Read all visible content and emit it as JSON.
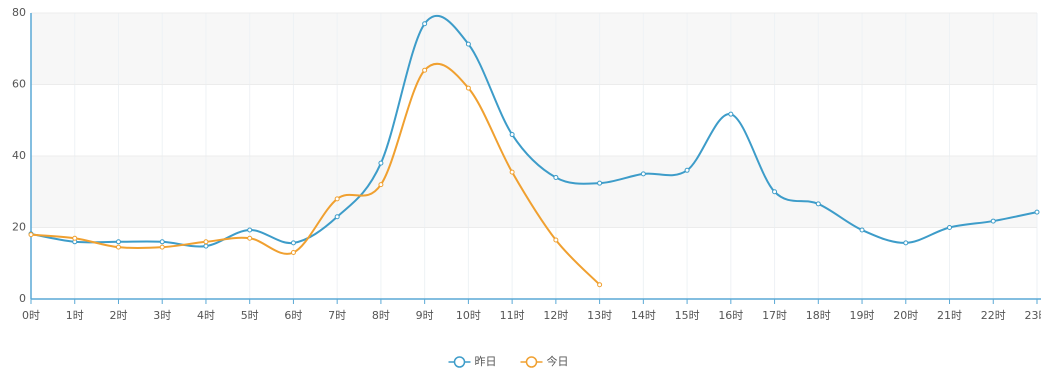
{
  "chart_data": {
    "type": "line",
    "categories": [
      "0时",
      "1时",
      "2时",
      "3时",
      "4时",
      "5时",
      "6时",
      "7时",
      "8时",
      "9时",
      "10时",
      "11时",
      "12时",
      "13时",
      "14时",
      "15时",
      "16时",
      "17时",
      "18时",
      "19时",
      "20时",
      "21时",
      "22时",
      "23时"
    ],
    "series": [
      {
        "name": "昨日",
        "color": "#3d9cc9",
        "values": [
          18.2,
          16,
          16,
          16,
          14.8,
          19.3,
          15.7,
          23,
          38,
          77,
          71.3,
          46,
          34,
          32.4,
          35,
          36,
          51.7,
          30,
          26.6,
          19.3,
          15.7,
          20,
          21.8,
          24.3
        ]
      },
      {
        "name": "今日",
        "color": "#f0a030",
        "values": [
          18,
          17,
          14.5,
          14.5,
          16,
          17,
          13,
          28,
          32,
          64,
          59,
          35.5,
          16.5,
          4,
          null,
          null,
          null,
          null,
          null,
          null,
          null,
          null,
          null,
          null
        ]
      }
    ],
    "ylim": [
      0,
      80
    ],
    "yticks": [
      0,
      20,
      40,
      60,
      80
    ],
    "grid": true,
    "legend": "bottom"
  }
}
